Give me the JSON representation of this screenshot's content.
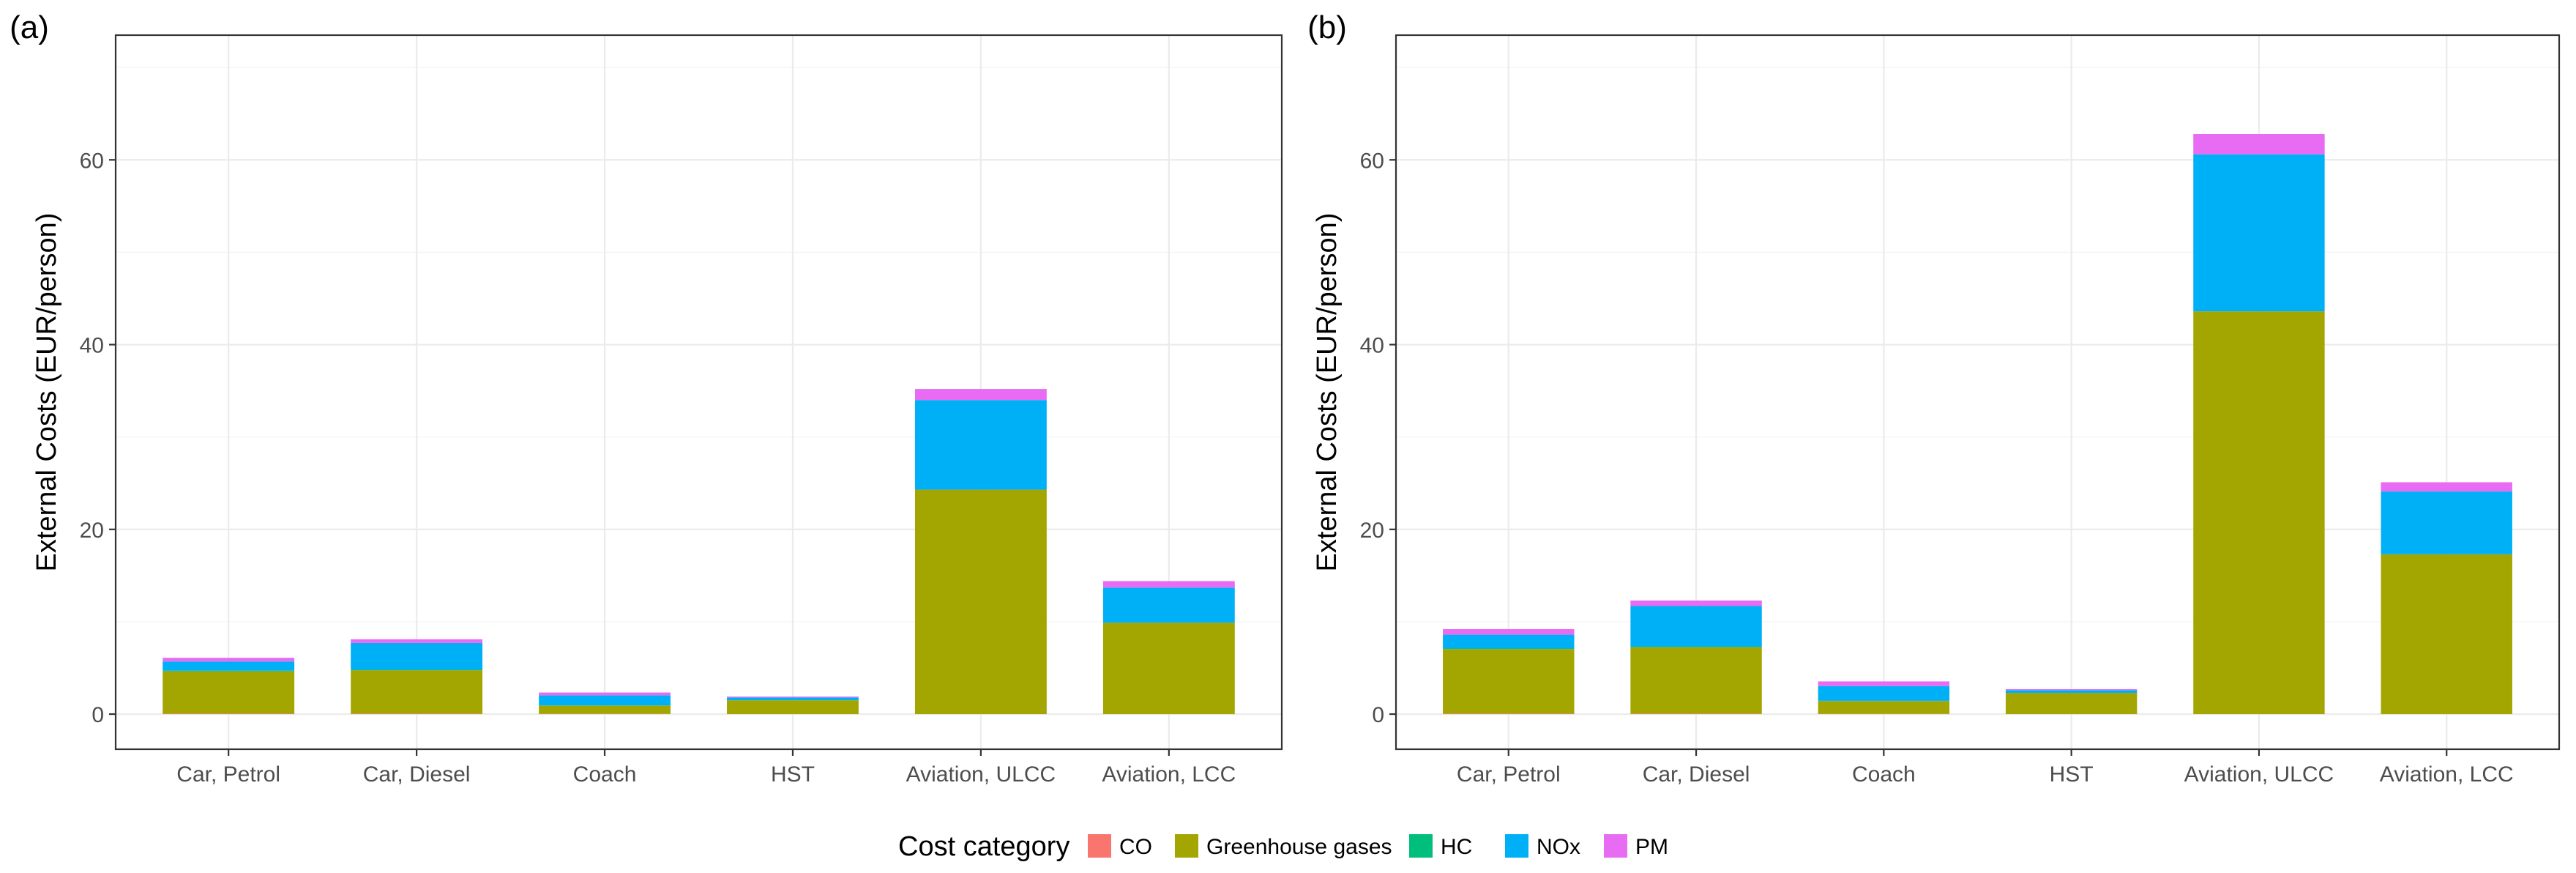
{
  "figure": {
    "legend": {
      "title": "Cost category",
      "entries": [
        {
          "name": "CO",
          "color": "#F8766D"
        },
        {
          "name": "Greenhouse gases",
          "color": "#A3A500"
        },
        {
          "name": "HC",
          "color": "#00BF7D"
        },
        {
          "name": "NOx",
          "color": "#00B0F6"
        },
        {
          "name": "PM",
          "color": "#E76BF3"
        }
      ]
    }
  },
  "chart_data": [
    {
      "panel_label": "(a)",
      "type": "bar",
      "stacked": true,
      "ylabel": "External Costs (EUR/person)",
      "xlabel": "",
      "ylim": [
        -3.8,
        73.5
      ],
      "yticks": [
        0,
        20,
        40,
        60
      ],
      "ytick_labels": [
        "0",
        "20",
        "40",
        "60"
      ],
      "grid": true,
      "categories": [
        "Car, Petrol",
        "Car, Diesel",
        "Coach",
        "HST",
        "Aviation, ULCC",
        "Aviation, LCC"
      ],
      "series": [
        {
          "name": "CO",
          "values": [
            0.05,
            0.05,
            0.02,
            0.0,
            0.0,
            0.0
          ]
        },
        {
          "name": "Greenhouse gases",
          "values": [
            4.6,
            4.7,
            0.9,
            1.5,
            24.3,
            9.9
          ]
        },
        {
          "name": "HC",
          "values": [
            0.05,
            0.05,
            0.02,
            0.0,
            0.0,
            0.0
          ]
        },
        {
          "name": "NOx",
          "values": [
            1.0,
            2.9,
            1.1,
            0.3,
            9.7,
            3.8
          ]
        },
        {
          "name": "PM",
          "values": [
            0.4,
            0.4,
            0.3,
            0.1,
            1.2,
            0.7
          ]
        }
      ]
    },
    {
      "panel_label": "(b)",
      "type": "bar",
      "stacked": true,
      "ylabel": "External Costs (EUR/person)",
      "xlabel": "",
      "ylim": [
        -3.8,
        73.5
      ],
      "yticks": [
        0,
        20,
        40,
        60
      ],
      "ytick_labels": [
        "0",
        "20",
        "40",
        "60"
      ],
      "grid": true,
      "categories": [
        "Car, Petrol",
        "Car, Diesel",
        "Coach",
        "HST",
        "Aviation, ULCC",
        "Aviation, LCC"
      ],
      "series": [
        {
          "name": "CO",
          "values": [
            0.05,
            0.05,
            0.02,
            0.0,
            0.0,
            0.0
          ]
        },
        {
          "name": "Greenhouse gases",
          "values": [
            7.0,
            7.2,
            1.4,
            2.3,
            43.6,
            17.3
          ]
        },
        {
          "name": "HC",
          "values": [
            0.05,
            0.05,
            0.02,
            0.0,
            0.0,
            0.0
          ]
        },
        {
          "name": "NOx",
          "values": [
            1.5,
            4.4,
            1.6,
            0.3,
            17.0,
            6.8
          ]
        },
        {
          "name": "PM",
          "values": [
            0.6,
            0.6,
            0.5,
            0.1,
            2.2,
            1.0
          ]
        }
      ]
    }
  ]
}
